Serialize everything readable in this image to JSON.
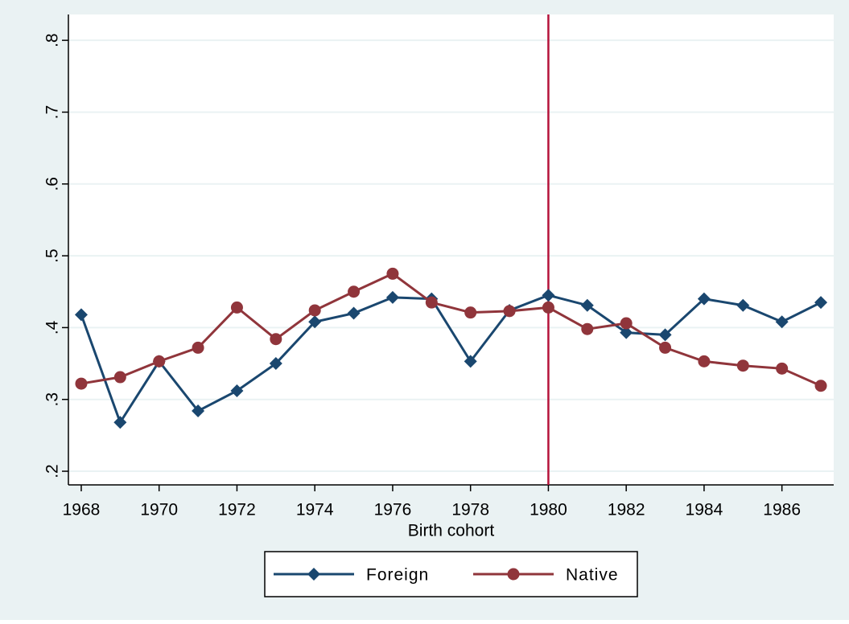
{
  "chart_data": {
    "type": "line",
    "x": [
      1968,
      1969,
      1970,
      1971,
      1972,
      1973,
      1974,
      1975,
      1976,
      1977,
      1978,
      1979,
      1980,
      1981,
      1982,
      1983,
      1984,
      1985,
      1986,
      1987
    ],
    "series": [
      {
        "name": "Foreign",
        "color": "#1a476f",
        "marker": "diamond",
        "values": [
          0.418,
          0.268,
          0.353,
          0.284,
          0.312,
          0.35,
          0.408,
          0.42,
          0.442,
          0.44,
          0.353,
          0.424,
          0.445,
          0.431,
          0.393,
          0.39,
          0.44,
          0.431,
          0.408,
          0.435
        ]
      },
      {
        "name": "Native",
        "color": "#90353b",
        "marker": "circle",
        "values": [
          0.322,
          0.331,
          0.353,
          0.372,
          0.428,
          0.384,
          0.424,
          0.45,
          0.475,
          0.435,
          0.421,
          0.423,
          0.428,
          0.398,
          0.406,
          0.372,
          0.353,
          0.347,
          0.343,
          0.319
        ]
      }
    ],
    "x_label": "Birth cohort",
    "xlim": [
      1967.67,
      1987.33
    ],
    "xticks": [
      1968,
      1970,
      1972,
      1974,
      1976,
      1978,
      1980,
      1982,
      1984,
      1986
    ],
    "ylim": [
      0.181,
      0.836
    ],
    "yticks": [
      {
        "value": 0.2,
        "label": ".2"
      },
      {
        "value": 0.3,
        "label": ".3"
      },
      {
        "value": 0.4,
        "label": ".4"
      },
      {
        "value": 0.5,
        "label": ".5"
      },
      {
        "value": 0.6,
        "label": ".6"
      },
      {
        "value": 0.7,
        "label": ".7"
      },
      {
        "value": 0.8,
        "label": ".8"
      }
    ],
    "xline": 1980,
    "xline_color": "#b5123a",
    "grid": true,
    "legend": "bottom"
  }
}
